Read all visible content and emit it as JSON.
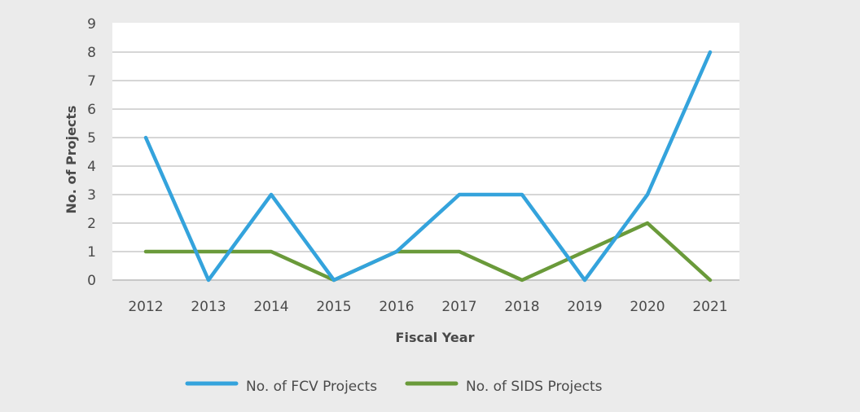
{
  "chart_data": {
    "type": "line",
    "title": "",
    "xlabel": "Fiscal Year",
    "ylabel": "No. of Projects",
    "categories": [
      "2012",
      "2013",
      "2014",
      "2015",
      "2016",
      "2017",
      "2018",
      "2019",
      "2020",
      "2021"
    ],
    "series": [
      {
        "name": "No. of FCV Projects",
        "color": "#34a3dc",
        "values": [
          5,
          0,
          3,
          0,
          1,
          3,
          3,
          0,
          3,
          8
        ]
      },
      {
        "name": "No. of SIDS Projects",
        "color": "#6a9a3a",
        "values": [
          1,
          1,
          1,
          0,
          1,
          1,
          0,
          1,
          2,
          0
        ]
      }
    ],
    "ylim": [
      0,
      9
    ],
    "yticks": [
      "0",
      "1",
      "2",
      "3",
      "4",
      "5",
      "6",
      "7",
      "8",
      "9"
    ],
    "grid": true,
    "legend_position": "bottom"
  }
}
